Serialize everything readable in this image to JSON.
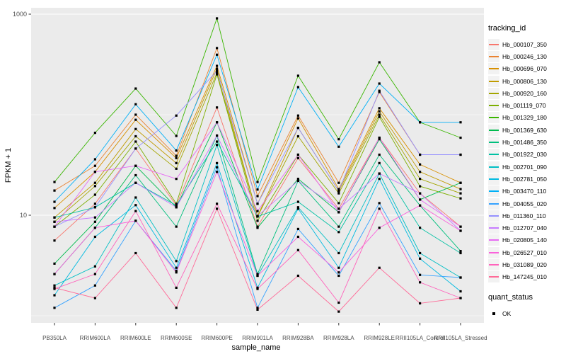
{
  "figure": {
    "panel_background": "#EBEBEB",
    "gridline_color": "#FFFFFF",
    "axis_text_color": "#4D4D4D",
    "title_text_color": "#000000",
    "point_color": "#000000"
  },
  "legend": {
    "tracking_title": "tracking_id",
    "quant_title": "quant_status",
    "quant_items": [
      {
        "label": "OK"
      }
    ]
  },
  "chart_data": {
    "type": "line",
    "title": "",
    "xlabel": "sample_name",
    "ylabel": "FPKM + 1",
    "x_categories": [
      "PB350LA",
      "RRIM600LA",
      "RRIM600LE",
      "RRIM600SE",
      "RRIM600PE",
      "RRIM901LA",
      "RRIM928BA",
      "RRIM928LA",
      "RRIM928LE",
      "RRII105LA_Control",
      "RRII105LA_Stressed"
    ],
    "y_scale": "log10",
    "ylim": [
      0.85,
      1160
    ],
    "y_breaks": [
      10,
      1000
    ],
    "y_break_labels": [
      "10",
      "1000"
    ],
    "y_minor_breaks": [
      1,
      100
    ],
    "grid": true,
    "legend_position": "right",
    "series": [
      {
        "name": "Hb_000107_350",
        "color": "#F8766D",
        "values": [
          5.6,
          13,
          46,
          12.5,
          118,
          7.7,
          37,
          11.6,
          59,
          16.5,
          7.7
        ]
      },
      {
        "name": "Hb_000246_130",
        "color": "#EA8331",
        "values": [
          17.6,
          31,
          100,
          39,
          460,
          15.5,
          98,
          21,
          168,
          40,
          40
        ]
      },
      {
        "name": "Hb_000696_070",
        "color": "#D89000",
        "values": [
          11.8,
          27,
          89,
          37,
          306,
          13,
          92,
          18.2,
          116,
          32,
          21
        ]
      },
      {
        "name": "Hb_000806_130",
        "color": "#C09B00",
        "values": [
          9.5,
          21,
          72,
          33,
          287,
          9.8,
          74,
          17.4,
          108,
          27,
          18.2
        ]
      },
      {
        "name": "Hb_000920_160",
        "color": "#A3A500",
        "values": [
          8.6,
          19.5,
          61,
          29,
          260,
          9.7,
          61,
          16.5,
          100,
          23,
          16.5
        ]
      },
      {
        "name": "Hb_001119_070",
        "color": "#7CAE00",
        "values": [
          7.7,
          16,
          54,
          13,
          252,
          8.8,
          40,
          13.2,
          95,
          19.4,
          14.7
        ]
      },
      {
        "name": "Hb_001329_180",
        "color": "#39B600",
        "values": [
          21.4,
          66,
          182,
          61.5,
          908,
          21.4,
          244,
          57,
          332,
          84,
          59
        ]
      },
      {
        "name": "Hb_001369_630",
        "color": "#00BB4E",
        "values": [
          3.3,
          8.6,
          31,
          12,
          84,
          7.5,
          23,
          10.7,
          57,
          14.3,
          21
        ]
      },
      {
        "name": "Hb_001486_350",
        "color": "#00BF7D",
        "values": [
          2.6,
          7.5,
          25,
          7.7,
          62,
          2.6,
          22,
          7.7,
          40,
          12.5,
          4.4
        ]
      },
      {
        "name": "Hb_001922_030",
        "color": "#00C1A3",
        "values": [
          9.5,
          12,
          21,
          12.5,
          54,
          9.7,
          13.6,
          6.8,
          33,
          7.5,
          4.2
        ]
      },
      {
        "name": "Hb_002701_090",
        "color": "#00BFC4",
        "values": [
          2.0,
          3.1,
          15,
          3.5,
          50,
          2.5,
          12,
          4.2,
          26,
          4.2,
          2.4
        ]
      },
      {
        "name": "Hb_002781_050",
        "color": "#00BAE0",
        "values": [
          1.6,
          6.1,
          12.6,
          3.0,
          33,
          1.9,
          11.6,
          3.0,
          23,
          3.7,
          1.75
        ]
      },
      {
        "name": "Hb_003470_110",
        "color": "#00B0F6",
        "values": [
          13.6,
          36,
          127,
          44,
          395,
          18,
          188,
          48,
          204,
          84,
          84
        ]
      },
      {
        "name": "Hb_004055_020",
        "color": "#35A2FF",
        "values": [
          1.2,
          2.0,
          8.8,
          2.8,
          30,
          1.2,
          7.3,
          2.5,
          13.2,
          2.55,
          2.4
        ]
      },
      {
        "name": "Hb_011360_110",
        "color": "#9590FF",
        "values": [
          7.7,
          12,
          46,
          98,
          273,
          13,
          74,
          17.4,
          173,
          40,
          40
        ]
      },
      {
        "name": "Hb_012707_040",
        "color": "#C77CFF",
        "values": [
          8.6,
          9.5,
          21,
          12,
          62,
          9.8,
          22,
          11.6,
          26,
          16.5,
          7.0
        ]
      },
      {
        "name": "Hb_020805_140",
        "color": "#E76BF3",
        "values": [
          7.7,
          27,
          31,
          23,
          84,
          11,
          40,
          10.7,
          59,
          14.3,
          7.7
        ]
      },
      {
        "name": "Hb_026527_010",
        "color": "#FA62DB",
        "values": [
          2.6,
          7.5,
          8.8,
          2.7,
          27,
          2.5,
          6.1,
          2.7,
          7.5,
          12.5,
          7.0
        ]
      },
      {
        "name": "Hb_031089_020",
        "color": "#FF62BC",
        "values": [
          1.85,
          2.6,
          11,
          1.9,
          13,
          1.85,
          4.5,
          1.35,
          11.6,
          2.15,
          1.5
        ]
      },
      {
        "name": "Hb_147245_010",
        "color": "#FF6A98",
        "values": [
          1.9,
          1.5,
          4.2,
          1.2,
          11.6,
          1.15,
          2.5,
          1.1,
          3.0,
          1.33,
          1.5
        ]
      }
    ]
  }
}
